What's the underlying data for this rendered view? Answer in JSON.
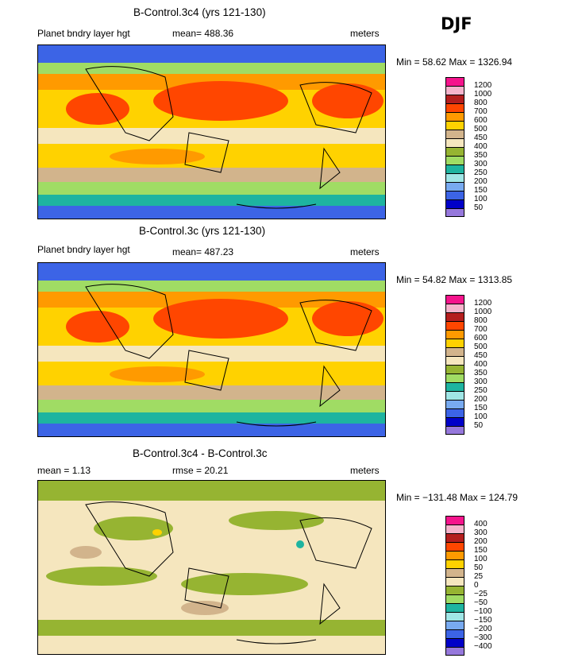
{
  "season": "DJF",
  "panels": [
    {
      "title": "B-Control.3c4 (yrs 121-130)",
      "left_label": "Planet bndry layer hgt",
      "stat_text": "mean= 488.36",
      "units": "meters",
      "minmax": "Min =   58.62 Max = 1326.94",
      "legend_labels": [
        "1200",
        "1000",
        "800",
        "700",
        "600",
        "500",
        "450",
        "400",
        "350",
        "300",
        "250",
        "200",
        "150",
        "100",
        "50"
      ],
      "legend_colors": [
        "#f5148c",
        "#f5b4cc",
        "#b41e1e",
        "#ff4600",
        "#ff9a00",
        "#ffd200",
        "#d2b48c",
        "#f5e6be",
        "#96b432",
        "#a0dc64",
        "#1eb4a0",
        "#a0e6e6",
        "#78aaf0",
        "#3c64e6",
        "#0000c8",
        "#9678dc"
      ]
    },
    {
      "title": "B-Control.3c (yrs 121-130)",
      "left_label": "Planet bndry layer hgt",
      "stat_text": "mean= 487.23",
      "units": "meters",
      "minmax": "Min =   54.82 Max = 1313.85",
      "legend_labels": [
        "1200",
        "1000",
        "800",
        "700",
        "600",
        "500",
        "450",
        "400",
        "350",
        "300",
        "250",
        "200",
        "150",
        "100",
        "50"
      ],
      "legend_colors": [
        "#f5148c",
        "#f5b4cc",
        "#b41e1e",
        "#ff4600",
        "#ff9a00",
        "#ffd200",
        "#d2b48c",
        "#f5e6be",
        "#96b432",
        "#a0dc64",
        "#1eb4a0",
        "#a0e6e6",
        "#78aaf0",
        "#3c64e6",
        "#0000c8",
        "#9678dc"
      ]
    },
    {
      "title": "B-Control.3c4 - B-Control.3c",
      "left_label": "mean =    1.13",
      "stat_text": "rmse =  20.21",
      "units": "meters",
      "minmax": "Min = −131.48 Max = 124.79",
      "legend_labels": [
        "400",
        "300",
        "200",
        "150",
        "100",
        "50",
        "25",
        "0",
        "−25",
        "−50",
        "−100",
        "−150",
        "−200",
        "−300",
        "−400"
      ],
      "legend_colors": [
        "#f5148c",
        "#f5b4cc",
        "#b41e1e",
        "#ff4600",
        "#ff9a00",
        "#ffd200",
        "#d2b48c",
        "#f5e6be",
        "#96b432",
        "#a0dc64",
        "#1eb4a0",
        "#a0e6e6",
        "#78aaf0",
        "#3c64e6",
        "#0000c8",
        "#9678dc"
      ]
    }
  ]
}
